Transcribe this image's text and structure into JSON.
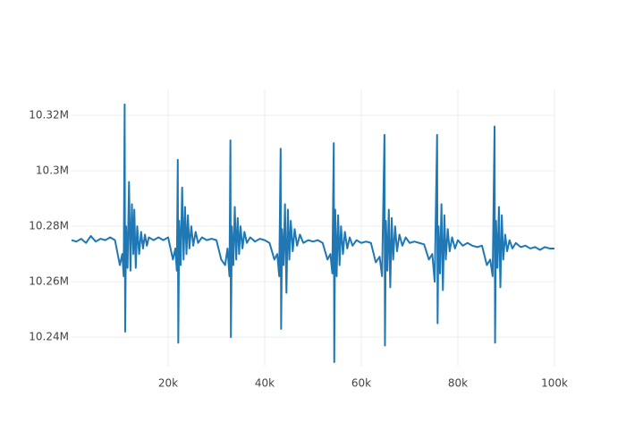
{
  "chart_data": {
    "type": "line",
    "color": "#1f77b4",
    "grid": true,
    "xlim": [
      0,
      100000
    ],
    "ylim": [
      10229400,
      10329400
    ],
    "xticks": [
      {
        "value": 20000,
        "label": "20k"
      },
      {
        "value": 40000,
        "label": "40k"
      },
      {
        "value": 60000,
        "label": "60k"
      },
      {
        "value": 80000,
        "label": "80k"
      },
      {
        "value": 100000,
        "label": "100k"
      }
    ],
    "yticks": [
      {
        "value": 10240000,
        "label": "10.24M"
      },
      {
        "value": 10260000,
        "label": "10.26M"
      },
      {
        "value": 10280000,
        "label": "10.28M"
      },
      {
        "value": 10300000,
        "label": "10.3M"
      },
      {
        "value": 10320000,
        "label": "10.32M"
      }
    ],
    "x": [
      0,
      1000,
      2000,
      3000,
      4000,
      5000,
      6000,
      7000,
      8000,
      9000,
      10000,
      10500,
      10800,
      11000,
      11100,
      11300,
      11600,
      11900,
      12200,
      12500,
      12800,
      13000,
      13300,
      13600,
      14000,
      14400,
      14800,
      15200,
      15600,
      16000,
      17000,
      18000,
      19000,
      20000,
      21000,
      21500,
      21800,
      22000,
      22100,
      22300,
      22600,
      22900,
      23200,
      23500,
      23800,
      24100,
      24400,
      24800,
      25200,
      25700,
      26200,
      27000,
      28000,
      29000,
      30000,
      31000,
      31800,
      32300,
      32700,
      32900,
      33000,
      33200,
      33500,
      33800,
      34100,
      34400,
      34700,
      35000,
      35400,
      35800,
      36300,
      37000,
      38000,
      39000,
      40000,
      41000,
      42000,
      42600,
      43000,
      43300,
      43400,
      43600,
      43900,
      44200,
      44500,
      44800,
      45100,
      45400,
      45800,
      46200,
      46700,
      47300,
      48000,
      49000,
      50000,
      51000,
      52000,
      53000,
      53600,
      54000,
      54300,
      54400,
      54600,
      54900,
      55200,
      55500,
      55800,
      56200,
      56600,
      57100,
      57600,
      58200,
      59000,
      60000,
      61000,
      62000,
      63000,
      63800,
      64300,
      64800,
      64900,
      65100,
      65400,
      65700,
      66000,
      66300,
      66600,
      67000,
      67400,
      67900,
      68500,
      69200,
      70000,
      71000,
      72000,
      73000,
      74000,
      74700,
      75200,
      75700,
      75800,
      76000,
      76300,
      76600,
      76900,
      77200,
      77500,
      77900,
      78300,
      78800,
      79400,
      80000,
      81000,
      82000,
      83000,
      84000,
      85000,
      86000,
      86700,
      87200,
      87600,
      87700,
      87900,
      88200,
      88500,
      88800,
      89100,
      89400,
      89800,
      90200,
      90700,
      91300,
      92000,
      93000,
      94000,
      95000,
      96000,
      97000,
      98000,
      99000,
      100000
    ],
    "values": [
      10275000,
      10274500,
      10275500,
      10274000,
      10276500,
      10274500,
      10275500,
      10275000,
      10276000,
      10275000,
      10266000,
      10270000,
      10262000,
      10324000,
      10242000,
      10280000,
      10265000,
      10296000,
      10264000,
      10288000,
      10270000,
      10286000,
      10265000,
      10280000,
      10270000,
      10278000,
      10272000,
      10277000,
      10273000,
      10276000,
      10275000,
      10276000,
      10275000,
      10276000,
      10268000,
      10272000,
      10264000,
      10304000,
      10238000,
      10282000,
      10266000,
      10294000,
      10268000,
      10287000,
      10270000,
      10284000,
      10272000,
      10280000,
      10273000,
      10278000,
      10274000,
      10276000,
      10275000,
      10275500,
      10275000,
      10268000,
      10266000,
      10272000,
      10262000,
      10311000,
      10240000,
      10280000,
      10266000,
      10287000,
      10268000,
      10283000,
      10270000,
      10280000,
      10272000,
      10278000,
      10274000,
      10276000,
      10274500,
      10275500,
      10275000,
      10274000,
      10268000,
      10270000,
      10262000,
      10308000,
      10243000,
      10279000,
      10266000,
      10288000,
      10256000,
      10286000,
      10268000,
      10282000,
      10271000,
      10279000,
      10273000,
      10277000,
      10274000,
      10275000,
      10274500,
      10275000,
      10274000,
      10268000,
      10270000,
      10263000,
      10310000,
      10231000,
      10286000,
      10262000,
      10284000,
      10266000,
      10280000,
      10270000,
      10278000,
      10272000,
      10276000,
      10273000,
      10275000,
      10274000,
      10274500,
      10274000,
      10267000,
      10269000,
      10262000,
      10313000,
      10237000,
      10282000,
      10264000,
      10286000,
      10258000,
      10283000,
      10268000,
      10280000,
      10271000,
      10277000,
      10273000,
      10276000,
      10274000,
      10274500,
      10274000,
      10273500,
      10268000,
      10270000,
      10260000,
      10313000,
      10245000,
      10280000,
      10263000,
      10288000,
      10257000,
      10284000,
      10268000,
      10279000,
      10271000,
      10276000,
      10272000,
      10275000,
      10273000,
      10274000,
      10273000,
      10272500,
      10273000,
      10266000,
      10268000,
      10262000,
      10316000,
      10238000,
      10282000,
      10265000,
      10287000,
      10258000,
      10284000,
      10268000,
      10277000,
      10271000,
      10275000,
      10272000,
      10274000,
      10272500,
      10273000,
      10272000,
      10272500,
      10271500,
      10272500,
      10272000,
      10272000
    ]
  }
}
